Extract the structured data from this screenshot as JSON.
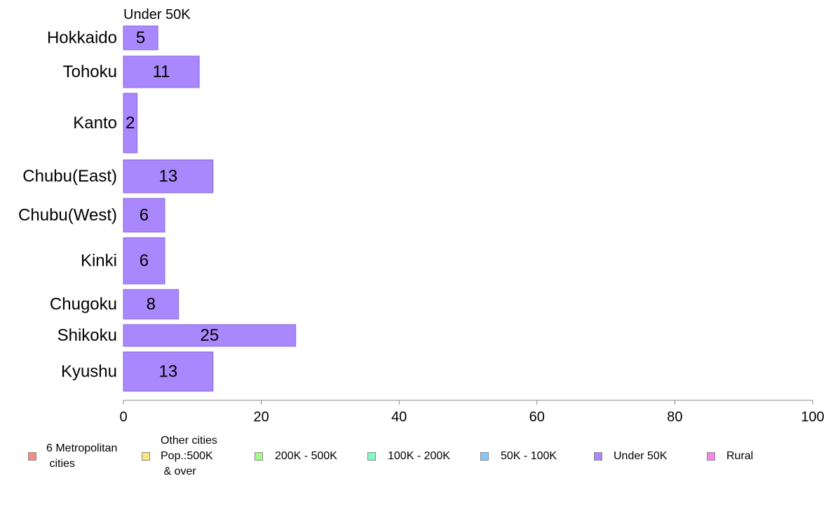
{
  "chart_data": {
    "type": "bar",
    "orientation": "horizontal",
    "title": "Under 50K",
    "categories": [
      "Hokkaido",
      "Tohoku",
      "Kanto",
      "Chubu(East)",
      "Chubu(West)",
      "Kinki",
      "Chugoku",
      "Shikoku",
      "Kyushu"
    ],
    "values": [
      5,
      11,
      2,
      13,
      6,
      6,
      8,
      25,
      13
    ],
    "value_labels": [
      "5",
      "11",
      "2",
      "13",
      "6",
      "6",
      "8",
      "25",
      "13"
    ],
    "xlim": [
      0,
      100
    ],
    "xticks": [
      0,
      20,
      40,
      60,
      80,
      100
    ],
    "xtick_labels": [
      "0",
      "20",
      "40",
      "60",
      "80",
      "100"
    ],
    "xlabel": "",
    "ylabel": "",
    "grid": false,
    "bar_color": "#a987fc",
    "bar_edge_color": "#8a6ad8",
    "legend_position": "bottom",
    "legend": [
      {
        "label": "6 Metropolitan\n cities",
        "color": "#f98b85"
      },
      {
        "label": "Other cities\nPop.:500K\n & over",
        "color": "#fbe57e"
      },
      {
        "label": "200K - 500K",
        "color": "#a6f98b"
      },
      {
        "label": "100K - 200K",
        "color": "#85f9c8"
      },
      {
        "label": "50K - 100K",
        "color": "#85c6f9"
      },
      {
        "label": "Under 50K",
        "color": "#a987fc"
      },
      {
        "label": "Rural",
        "color": "#f985ea"
      }
    ]
  }
}
